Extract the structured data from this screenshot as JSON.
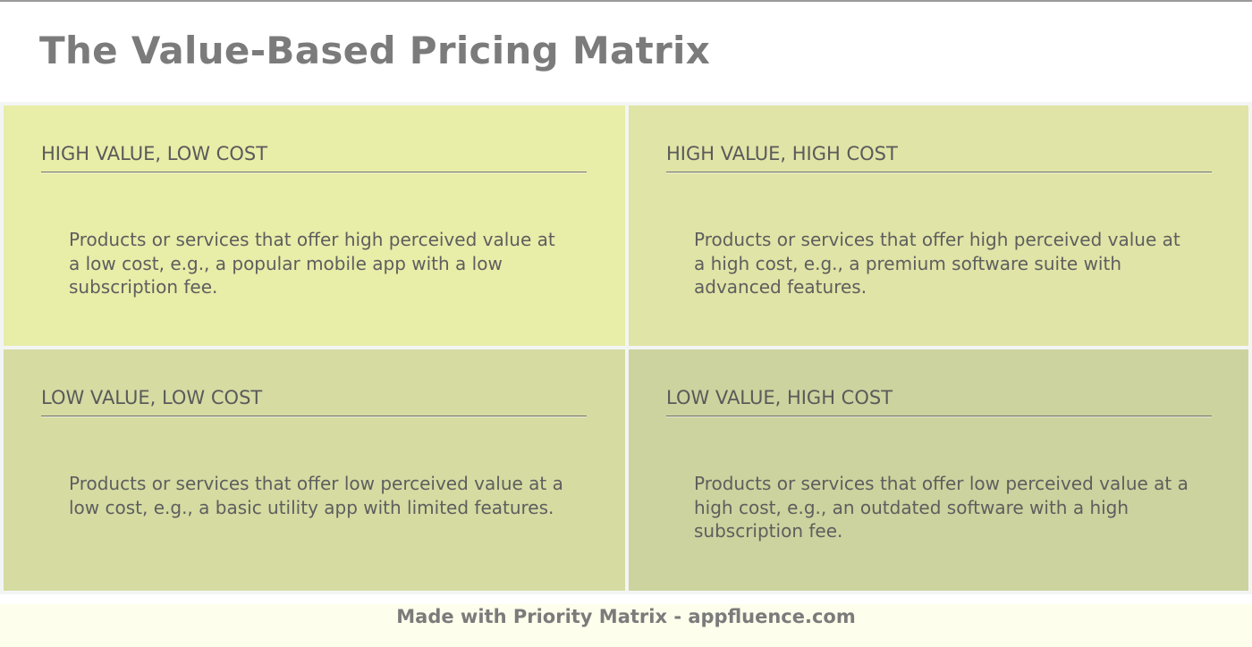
{
  "title": "The Value-Based Pricing Matrix",
  "colors": {
    "title_text": "#7b7b7b",
    "matrix_background": "#f3f5f5",
    "footer_background": "#fdfeeb",
    "heading_text": "#5a5a5a",
    "body_text": "#5e5e5e"
  },
  "quadrants": [
    {
      "heading": "HIGH VALUE, LOW COST",
      "body": "Products or services that offer high perceived value at a low cost, e.g., a popular mobile app with a low subscription fee.",
      "color": "#e8eda8"
    },
    {
      "heading": "HIGH VALUE, HIGH COST",
      "body": "Products or services that offer high perceived value at a high cost, e.g., a premium software suite with advanced features.",
      "color": "#e0e4a6"
    },
    {
      "heading": "LOW VALUE, LOW COST",
      "body": "Products or services that offer low perceived value at a low cost, e.g., a basic utility app with limited features.",
      "color": "#d6dba2"
    },
    {
      "heading": "LOW VALUE, HIGH COST",
      "body": "Products or services that offer low perceived value at a high cost, e.g., an outdated software with a high subscription fee.",
      "color": "#ccd39e"
    }
  ],
  "footer": {
    "text": "Made with Priority Matrix - appfluence.com"
  }
}
